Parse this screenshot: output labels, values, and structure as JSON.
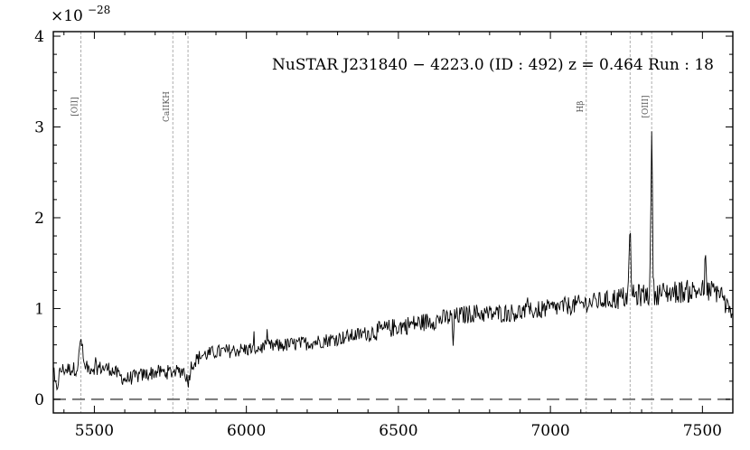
{
  "chart_data": {
    "type": "line",
    "title": "NuSTAR J231840 − 4223.0 (ID : 492)   z = 0.464   Run : 18",
    "y_multiplier_base": "×10",
    "y_multiplier_exp": "−28",
    "xlim": [
      5365,
      7600
    ],
    "ylim": [
      -0.15,
      4.05
    ],
    "x_ticks": [
      5500,
      6000,
      6500,
      7000,
      7500
    ],
    "y_ticks": [
      0,
      1,
      2,
      3,
      4
    ],
    "zero_line": 0,
    "lines": [
      {
        "name": "[OII]",
        "x": 5456
      },
      {
        "name": "CaIIKH",
        "x": 5758
      },
      {
        "name": "",
        "x": 5808
      },
      {
        "name": "Hβ",
        "x": 7118
      },
      {
        "name": "",
        "x": 7262
      },
      {
        "name": "[OIII]",
        "x": 7333
      }
    ],
    "continuum": [
      [
        5365,
        0.32
      ],
      [
        5450,
        0.34
      ],
      [
        5500,
        0.35
      ],
      [
        5550,
        0.34
      ],
      [
        5600,
        0.22
      ],
      [
        5650,
        0.26
      ],
      [
        5700,
        0.3
      ],
      [
        5750,
        0.3
      ],
      [
        5800,
        0.32
      ],
      [
        5850,
        0.48
      ],
      [
        5900,
        0.52
      ],
      [
        6000,
        0.55
      ],
      [
        6100,
        0.59
      ],
      [
        6200,
        0.62
      ],
      [
        6300,
        0.67
      ],
      [
        6400,
        0.73
      ],
      [
        6500,
        0.8
      ],
      [
        6600,
        0.86
      ],
      [
        6700,
        0.92
      ],
      [
        6750,
        0.95
      ],
      [
        6800,
        0.94
      ],
      [
        6900,
        0.96
      ],
      [
        7000,
        1.0
      ],
      [
        7100,
        1.05
      ],
      [
        7200,
        1.1
      ],
      [
        7300,
        1.15
      ],
      [
        7400,
        1.18
      ],
      [
        7500,
        1.2
      ],
      [
        7560,
        1.18
      ],
      [
        7600,
        0.85
      ]
    ],
    "features": [
      {
        "x": 5456,
        "amp": 0.32,
        "width": 5
      },
      {
        "x": 5375,
        "amp": -0.2,
        "width": 6
      },
      {
        "x": 5808,
        "amp": -0.15,
        "width": 5
      },
      {
        "x": 6830,
        "amp": 0.0,
        "width": 5
      },
      {
        "x": 6680,
        "amp": -0.3,
        "width": 2
      },
      {
        "x": 7262,
        "amp": 0.65,
        "width": 3
      },
      {
        "x": 7333,
        "amp": 1.8,
        "width": 2.5
      },
      {
        "x": 7510,
        "amp": 0.35,
        "width": 2
      }
    ],
    "noise_amplitude": 0.08
  }
}
